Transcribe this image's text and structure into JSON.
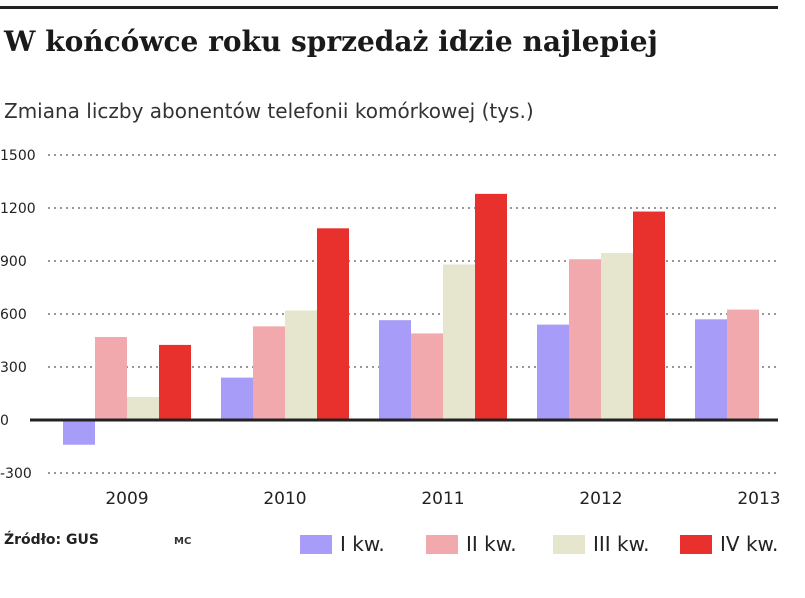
{
  "header": {
    "title": "W końcówce roku sprzedaż idzie najlepiej",
    "subtitle": "Zmiana liczby abonentów telefonii komórkowej (tys.)"
  },
  "footer": {
    "source": "Źródło: GUS",
    "credit": "MC"
  },
  "chart_data": {
    "type": "bar",
    "categories": [
      "2009",
      "2010",
      "2011",
      "2012",
      "2013"
    ],
    "series": [
      {
        "name": "I kw.",
        "color": "#a79cf7",
        "values": [
          -140,
          240,
          565,
          540,
          570
        ]
      },
      {
        "name": "II kw.",
        "color": "#f2a9ad",
        "values": [
          470,
          530,
          490,
          910,
          625
        ]
      },
      {
        "name": "III kw.",
        "color": "#e6e6cf",
        "values": [
          130,
          620,
          880,
          945,
          null
        ]
      },
      {
        "name": "IV kw.",
        "color": "#e8302d",
        "values": [
          425,
          1085,
          1280,
          1180,
          null
        ]
      }
    ],
    "ylim": [
      -300,
      1500
    ],
    "yticks": [
      -300,
      0,
      300,
      600,
      900,
      1200,
      1500
    ],
    "grid": true,
    "legend": "bottom-right"
  }
}
